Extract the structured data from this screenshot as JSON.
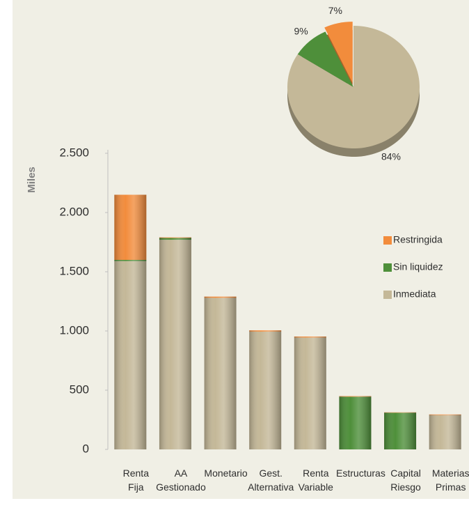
{
  "chart_data": [
    {
      "type": "stacked_bar",
      "y_label": "Miles",
      "categories": [
        "Renta Fija",
        "AA Gestionado",
        "Monetario",
        "Gest. Alternativa",
        "Renta Variable",
        "Estructuras",
        "Capital Riesgo",
        "Materias Primas"
      ],
      "series": [
        {
          "name": "Inmediata",
          "color": "#c4b898",
          "values": [
            1590,
            1770,
            1280,
            995,
            945,
            0,
            0,
            290
          ]
        },
        {
          "name": "Sin liquidez",
          "color": "#4e8f3a",
          "values": [
            10,
            15,
            0,
            0,
            0,
            445,
            310,
            0
          ]
        },
        {
          "name": "Restringida",
          "color": "#f28c3c",
          "values": [
            550,
            5,
            10,
            10,
            8,
            5,
            3,
            5
          ]
        }
      ],
      "ylim": [
        0,
        2500
      ],
      "yticks": [
        0,
        500,
        {
          "value": 1000,
          "label": "1.000"
        },
        {
          "value": 1500,
          "label": "1.500"
        },
        {
          "value": 2000,
          "label": "2.000"
        },
        {
          "value": 2500,
          "label": "2.500"
        }
      ],
      "legend": "right"
    },
    {
      "type": "pie",
      "categories": [
        "Inmediata",
        "Sin liquidez",
        "Restringida"
      ],
      "colors": [
        "#c4b898",
        "#4e8f3a",
        "#f28c3c"
      ],
      "values": [
        84,
        9,
        7
      ],
      "value_labels": [
        "84%",
        "9%",
        "7%"
      ]
    }
  ]
}
